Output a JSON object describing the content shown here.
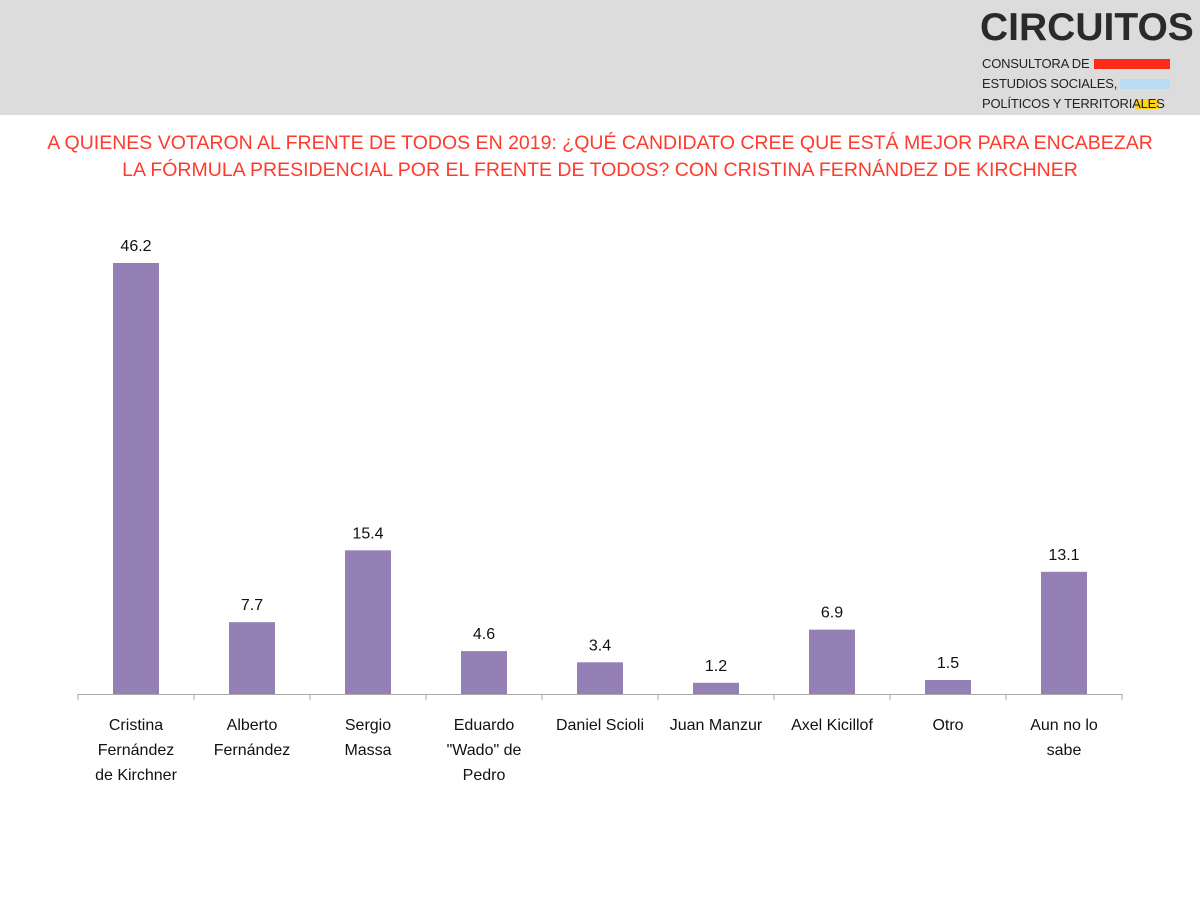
{
  "logo": {
    "name": "CIRCUITOS",
    "line1": "CONSULTORA DE",
    "line2": "ESTUDIOS SOCIALES,",
    "line3": "POLÍTICOS Y TERRITORIALES",
    "stripe_colors": [
      "#ff2a1a",
      "#b9dcf5",
      "#ffd21f"
    ]
  },
  "chart_data": {
    "type": "bar",
    "title": "A QUIENES VOTARON AL FRENTE DE TODOS EN 2019: ¿QUÉ CANDIDATO CREE QUE ESTÁ MEJOR PARA ENCABEZAR LA FÓRMULA PRESIDENCIAL POR EL FRENTE DE TODOS? CON CRISTINA FERNÁNDEZ DE KIRCHNER",
    "categories": [
      "Cristina Fernández de Kirchner",
      "Alberto Fernández",
      "Sergio Massa",
      "Eduardo \"Wado\" de Pedro",
      "Daniel Scioli",
      "Juan Manzur",
      "Axel Kicillof",
      "Otro",
      "Aun no lo sabe"
    ],
    "category_lines": [
      [
        "Cristina",
        "Fernández",
        "de Kirchner"
      ],
      [
        "Alberto",
        "Fernández"
      ],
      [
        "Sergio",
        "Massa"
      ],
      [
        "Eduardo",
        "\"Wado\" de",
        "Pedro"
      ],
      [
        "Daniel Scioli"
      ],
      [
        "Juan Manzur"
      ],
      [
        "Axel Kicillof"
      ],
      [
        "Otro"
      ],
      [
        "Aun no lo",
        "sabe"
      ]
    ],
    "values": [
      46.2,
      7.7,
      15.4,
      4.6,
      3.4,
      1.2,
      6.9,
      1.5,
      13.1
    ],
    "value_labels": [
      "46.2",
      "7.7",
      "15.4",
      "4.6",
      "3.4",
      "1.2",
      "6.9",
      "1.5",
      "13.1"
    ],
    "ylim": [
      0,
      46.2
    ],
    "bar_color": "#9580b5",
    "axis_color": "#aaaaaa",
    "grid": false,
    "legend": "none",
    "xlabel": "",
    "ylabel": ""
  }
}
